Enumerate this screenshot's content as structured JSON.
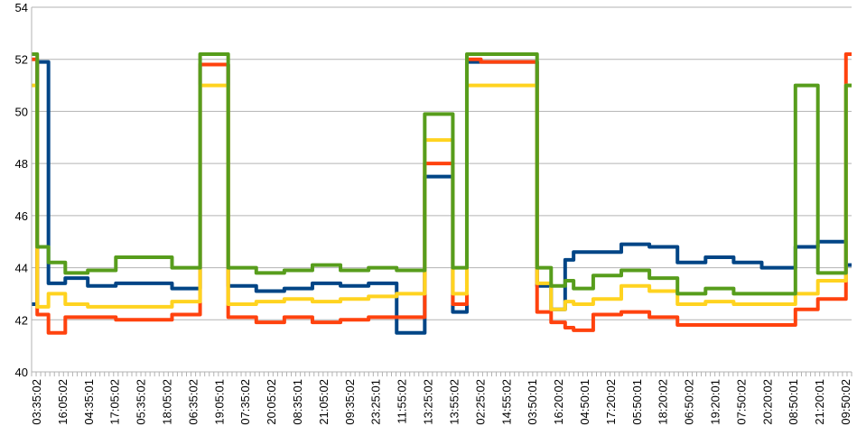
{
  "chart_data": {
    "type": "line",
    "title": "",
    "xlabel": "",
    "ylabel": "",
    "ylim": [
      40,
      54
    ],
    "y_ticks": [
      40,
      42,
      44,
      46,
      48,
      50,
      52,
      54
    ],
    "x_tick_labels": [
      "03:35:02",
      "16:05:02",
      "04:35:01",
      "17:05:02",
      "05:35:02",
      "18:05:02",
      "06:35:02",
      "19:05:01",
      "07:35:02",
      "20:05:02",
      "08:35:01",
      "21:05:02",
      "09:35:02",
      "23:25:01",
      "11:55:02",
      "13:25:02",
      "13:55:02",
      "02:25:02",
      "14:55:02",
      "03:50:01",
      "16:20:02",
      "04:50:01",
      "17:20:02",
      "05:50:01",
      "18:20:02",
      "06:50:02",
      "19:20:01",
      "07:50:02",
      "20:20:02",
      "08:50:01",
      "21:20:01",
      "09:50:02"
    ],
    "grid": "horizontal",
    "legend": "none",
    "colors": {
      "blue": "#004586",
      "orange": "#ff420e",
      "yellow": "#ffd320",
      "green": "#579d1c"
    },
    "series": [
      {
        "color": "#004586",
        "points": [
          [
            0,
            42.6
          ],
          [
            0.2,
            51.9
          ],
          [
            0.6,
            43.4
          ],
          [
            1.2,
            43.6
          ],
          [
            2,
            43.3
          ],
          [
            3,
            43.4
          ],
          [
            5,
            43.2
          ],
          [
            6,
            51.8
          ],
          [
            7,
            43.3
          ],
          [
            8,
            43.1
          ],
          [
            9,
            43.2
          ],
          [
            10,
            43.4
          ],
          [
            11,
            43.3
          ],
          [
            12,
            43.4
          ],
          [
            13,
            41.5
          ],
          [
            14,
            47.5
          ],
          [
            15,
            42.3
          ],
          [
            15.5,
            51.9
          ],
          [
            16,
            51.9
          ],
          [
            17,
            51.9
          ],
          [
            18,
            43.3
          ],
          [
            18.5,
            42.4
          ],
          [
            19,
            44.3
          ],
          [
            19.3,
            44.6
          ],
          [
            20,
            44.6
          ],
          [
            21,
            44.9
          ],
          [
            22,
            44.8
          ],
          [
            23,
            44.2
          ],
          [
            24,
            44.4
          ],
          [
            25,
            44.2
          ],
          [
            26,
            44.0
          ],
          [
            27,
            44.0
          ],
          [
            27.2,
            44.8
          ],
          [
            28,
            45.0
          ],
          [
            28.8,
            45.0
          ],
          [
            29,
            44.1
          ]
        ]
      },
      {
        "color": "#ff420e",
        "points": [
          [
            0,
            52.0
          ],
          [
            0.2,
            42.2
          ],
          [
            0.6,
            41.5
          ],
          [
            1.2,
            42.1
          ],
          [
            2,
            42.1
          ],
          [
            3,
            42.0
          ],
          [
            5,
            42.2
          ],
          [
            6,
            51.8
          ],
          [
            7,
            42.1
          ],
          [
            8,
            41.9
          ],
          [
            9,
            42.1
          ],
          [
            10,
            41.9
          ],
          [
            11,
            42.0
          ],
          [
            12,
            42.1
          ],
          [
            13,
            42.1
          ],
          [
            14,
            48.0
          ],
          [
            15,
            42.6
          ],
          [
            15.5,
            52.0
          ],
          [
            16,
            51.9
          ],
          [
            17,
            51.9
          ],
          [
            18,
            42.3
          ],
          [
            18.5,
            41.9
          ],
          [
            19,
            41.7
          ],
          [
            19.3,
            41.6
          ],
          [
            20,
            42.2
          ],
          [
            21,
            42.3
          ],
          [
            22,
            42.1
          ],
          [
            23,
            41.8
          ],
          [
            24,
            41.8
          ],
          [
            25,
            41.8
          ],
          [
            26,
            41.8
          ],
          [
            27,
            41.8
          ],
          [
            27.2,
            42.4
          ],
          [
            28,
            42.8
          ],
          [
            28.8,
            42.8
          ],
          [
            29,
            52.2
          ]
        ]
      },
      {
        "color": "#ffd320",
        "points": [
          [
            0,
            51.0
          ],
          [
            0.2,
            42.5
          ],
          [
            0.6,
            43.0
          ],
          [
            1.2,
            42.6
          ],
          [
            2,
            42.5
          ],
          [
            3,
            42.5
          ],
          [
            5,
            42.7
          ],
          [
            6,
            51.0
          ],
          [
            7,
            42.6
          ],
          [
            8,
            42.7
          ],
          [
            9,
            42.8
          ],
          [
            10,
            42.7
          ],
          [
            11,
            42.8
          ],
          [
            12,
            42.9
          ],
          [
            13,
            43.0
          ],
          [
            14,
            48.9
          ],
          [
            15,
            43.0
          ],
          [
            15.5,
            51.0
          ],
          [
            16,
            51.0
          ],
          [
            17,
            51.0
          ],
          [
            18,
            43.4
          ],
          [
            18.5,
            42.4
          ],
          [
            19,
            42.7
          ],
          [
            19.3,
            42.6
          ],
          [
            20,
            42.8
          ],
          [
            21,
            43.3
          ],
          [
            22,
            43.1
          ],
          [
            23,
            42.6
          ],
          [
            24,
            42.7
          ],
          [
            25,
            42.6
          ],
          [
            26,
            42.6
          ],
          [
            27,
            42.6
          ],
          [
            27.2,
            43.0
          ],
          [
            28,
            43.5
          ],
          [
            28.8,
            43.5
          ],
          [
            29,
            51.0
          ]
        ]
      },
      {
        "color": "#579d1c",
        "points": [
          [
            0,
            52.2
          ],
          [
            0.2,
            44.8
          ],
          [
            0.6,
            44.2
          ],
          [
            1.2,
            43.8
          ],
          [
            2,
            43.9
          ],
          [
            3,
            44.4
          ],
          [
            5,
            44.0
          ],
          [
            6,
            52.2
          ],
          [
            7,
            44.0
          ],
          [
            8,
            43.8
          ],
          [
            9,
            43.9
          ],
          [
            10,
            44.1
          ],
          [
            11,
            43.9
          ],
          [
            12,
            44.0
          ],
          [
            13,
            43.9
          ],
          [
            14,
            49.9
          ],
          [
            15,
            44.0
          ],
          [
            15.5,
            52.2
          ],
          [
            16,
            52.2
          ],
          [
            17,
            52.2
          ],
          [
            18,
            44.0
          ],
          [
            18.5,
            43.3
          ],
          [
            19,
            43.5
          ],
          [
            19.3,
            43.2
          ],
          [
            20,
            43.7
          ],
          [
            21,
            43.9
          ],
          [
            22,
            43.6
          ],
          [
            23,
            43.0
          ],
          [
            24,
            43.2
          ],
          [
            25,
            43.0
          ],
          [
            26,
            43.0
          ],
          [
            27,
            43.0
          ],
          [
            27.2,
            51.0
          ],
          [
            28,
            43.8
          ],
          [
            28.8,
            43.8
          ],
          [
            29,
            51.0
          ]
        ]
      }
    ]
  }
}
